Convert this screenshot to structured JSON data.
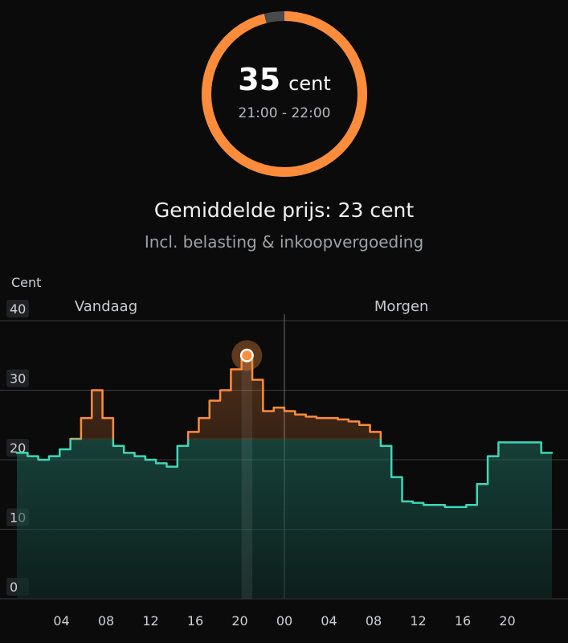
{
  "current": {
    "price": "35",
    "unit": "cent",
    "time_range": "21:00 - 22:00",
    "ring_fill": 0.96
  },
  "average_text": "Gemiddelde prijs: 23 cent",
  "subtitle": "Incl. belasting & inkoopvergoeding",
  "colors": {
    "accent": "#ff8c3a",
    "teal": "#3fd6b5",
    "background": "#0b0b0c",
    "ring_track": "#4a4a4c"
  },
  "chart_data": {
    "type": "line",
    "step": true,
    "ylabel": "Cent",
    "ylim": [
      0,
      40
    ],
    "yticks": [
      "0",
      "10",
      "20",
      "30",
      "40"
    ],
    "day_labels": [
      "Vandaag",
      "Morgen"
    ],
    "x_ticks": [
      "04",
      "08",
      "12",
      "16",
      "20",
      "00",
      "04",
      "08",
      "12",
      "16",
      "20"
    ],
    "x_tick_hours": [
      4,
      8,
      12,
      16,
      20,
      24,
      28,
      32,
      36,
      40,
      44
    ],
    "x_range_hours": [
      0,
      48
    ],
    "day_divider_hour": 24,
    "highlight_hour": 21,
    "highlight_value": 35,
    "average": 23,
    "series": [
      {
        "values": [
          21,
          20.5,
          20,
          20.5,
          21.5,
          23,
          26,
          30,
          26,
          22,
          21,
          20.5,
          20,
          19.5,
          19,
          22,
          24,
          26,
          28.5,
          30,
          33,
          35,
          31.5,
          27,
          27.5,
          27,
          26.5,
          26.2,
          26,
          26,
          25.8,
          25.5,
          25,
          24,
          22,
          17.5,
          14,
          13.8,
          13.5,
          13.5,
          13.2,
          13.2,
          13.5,
          16.5,
          20.5,
          22.5,
          22.5,
          22.5,
          22.5,
          21
        ]
      }
    ]
  }
}
